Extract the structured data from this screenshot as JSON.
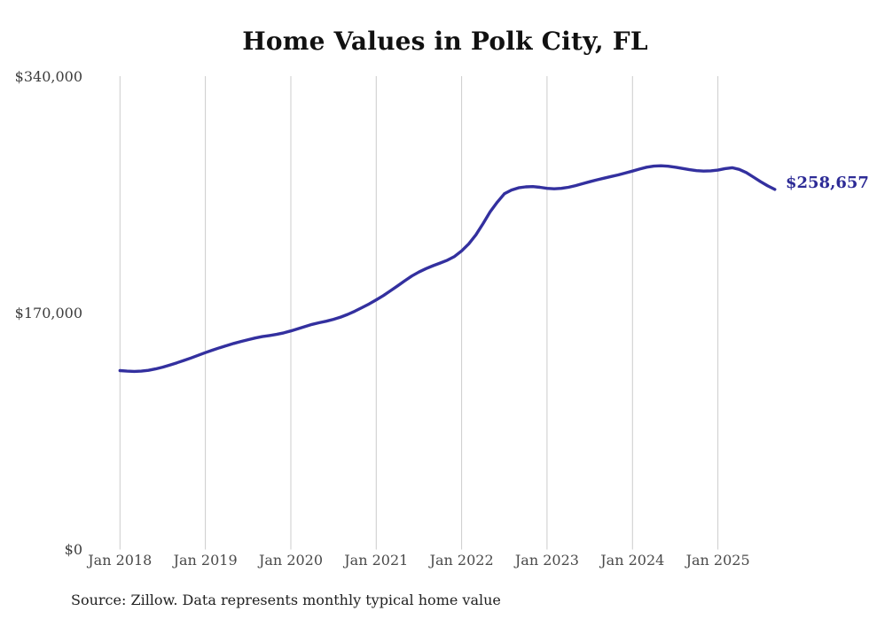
{
  "chart": {
    "title": "Home Values in Polk City, FL",
    "end_label": "$258,657",
    "source": "Source: Zillow. Data represents monthly typical home value"
  },
  "chart_data": {
    "type": "line",
    "title": "Home Values in Polk City, FL",
    "series_name": "Monthly typical home value",
    "source": "Source: Zillow. Data represents monthly typical home value",
    "legend": "none",
    "gridlines": "vertical-only",
    "line_color": "#33309f",
    "grid_color": "#cccccc",
    "end_label_color": "#2d2b96",
    "ylim": [
      0,
      340000
    ],
    "y_ticks": [
      {
        "value": 340000,
        "label": "$340,000"
      },
      {
        "value": 170000,
        "label": "$170,000"
      },
      {
        "value": 0,
        "label": "$0"
      }
    ],
    "x_tick_labels": [
      "Jan 2018",
      "Jan 2019",
      "Jan 2020",
      "Jan 2021",
      "Jan 2022",
      "Jan 2023",
      "Jan 2024",
      "Jan 2025"
    ],
    "x_tick_month_indices": [
      0,
      12,
      24,
      36,
      48,
      60,
      72,
      84
    ],
    "last_value": 258657,
    "last_value_label": "$258,657",
    "x": [
      "2018-01",
      "2018-02",
      "2018-03",
      "2018-04",
      "2018-05",
      "2018-06",
      "2018-07",
      "2018-08",
      "2018-09",
      "2018-10",
      "2018-11",
      "2018-12",
      "2019-01",
      "2019-02",
      "2019-03",
      "2019-04",
      "2019-05",
      "2019-06",
      "2019-07",
      "2019-08",
      "2019-09",
      "2019-10",
      "2019-11",
      "2019-12",
      "2020-01",
      "2020-02",
      "2020-03",
      "2020-04",
      "2020-05",
      "2020-06",
      "2020-07",
      "2020-08",
      "2020-09",
      "2020-10",
      "2020-11",
      "2020-12",
      "2021-01",
      "2021-02",
      "2021-03",
      "2021-04",
      "2021-05",
      "2021-06",
      "2021-07",
      "2021-08",
      "2021-09",
      "2021-10",
      "2021-11",
      "2021-12",
      "2022-01",
      "2022-02",
      "2022-03",
      "2022-04",
      "2022-05",
      "2022-06",
      "2022-07",
      "2022-08",
      "2022-09",
      "2022-10",
      "2022-11",
      "2022-12",
      "2023-01",
      "2023-02",
      "2023-03",
      "2023-04",
      "2023-05",
      "2023-06",
      "2023-07",
      "2023-08",
      "2023-09",
      "2023-10",
      "2023-11",
      "2023-12",
      "2024-01",
      "2024-02",
      "2024-03",
      "2024-04",
      "2024-05",
      "2024-06",
      "2024-07",
      "2024-08",
      "2024-09",
      "2024-10",
      "2024-11",
      "2024-12",
      "2025-01",
      "2025-02",
      "2025-03",
      "2025-04",
      "2025-05",
      "2025-06",
      "2025-07",
      "2025-08",
      "2025-09"
    ],
    "values": [
      128500,
      128100,
      127900,
      128100,
      128700,
      129700,
      131000,
      132500,
      134100,
      135800,
      137600,
      139500,
      141400,
      143200,
      144900,
      146500,
      148000,
      149400,
      150700,
      151900,
      152900,
      153700,
      154500,
      155600,
      157000,
      158600,
      160200,
      161700,
      162900,
      164000,
      165300,
      166900,
      168900,
      171200,
      173700,
      176400,
      179300,
      182400,
      185800,
      189400,
      193000,
      196400,
      199300,
      201800,
      203900,
      205800,
      207800,
      210500,
      214500,
      219500,
      226000,
      234000,
      242500,
      249500,
      255500,
      258200,
      259800,
      260500,
      260700,
      260200,
      259400,
      259100,
      259400,
      260200,
      261400,
      262800,
      264200,
      265500,
      266700,
      267900,
      269100,
      270400,
      271800,
      273300,
      274600,
      275400,
      275600,
      275300,
      274600,
      273700,
      272800,
      272100,
      271800,
      272000,
      272500,
      273600,
      274200,
      273000,
      270700,
      267500,
      264200,
      261200,
      258657
    ]
  }
}
